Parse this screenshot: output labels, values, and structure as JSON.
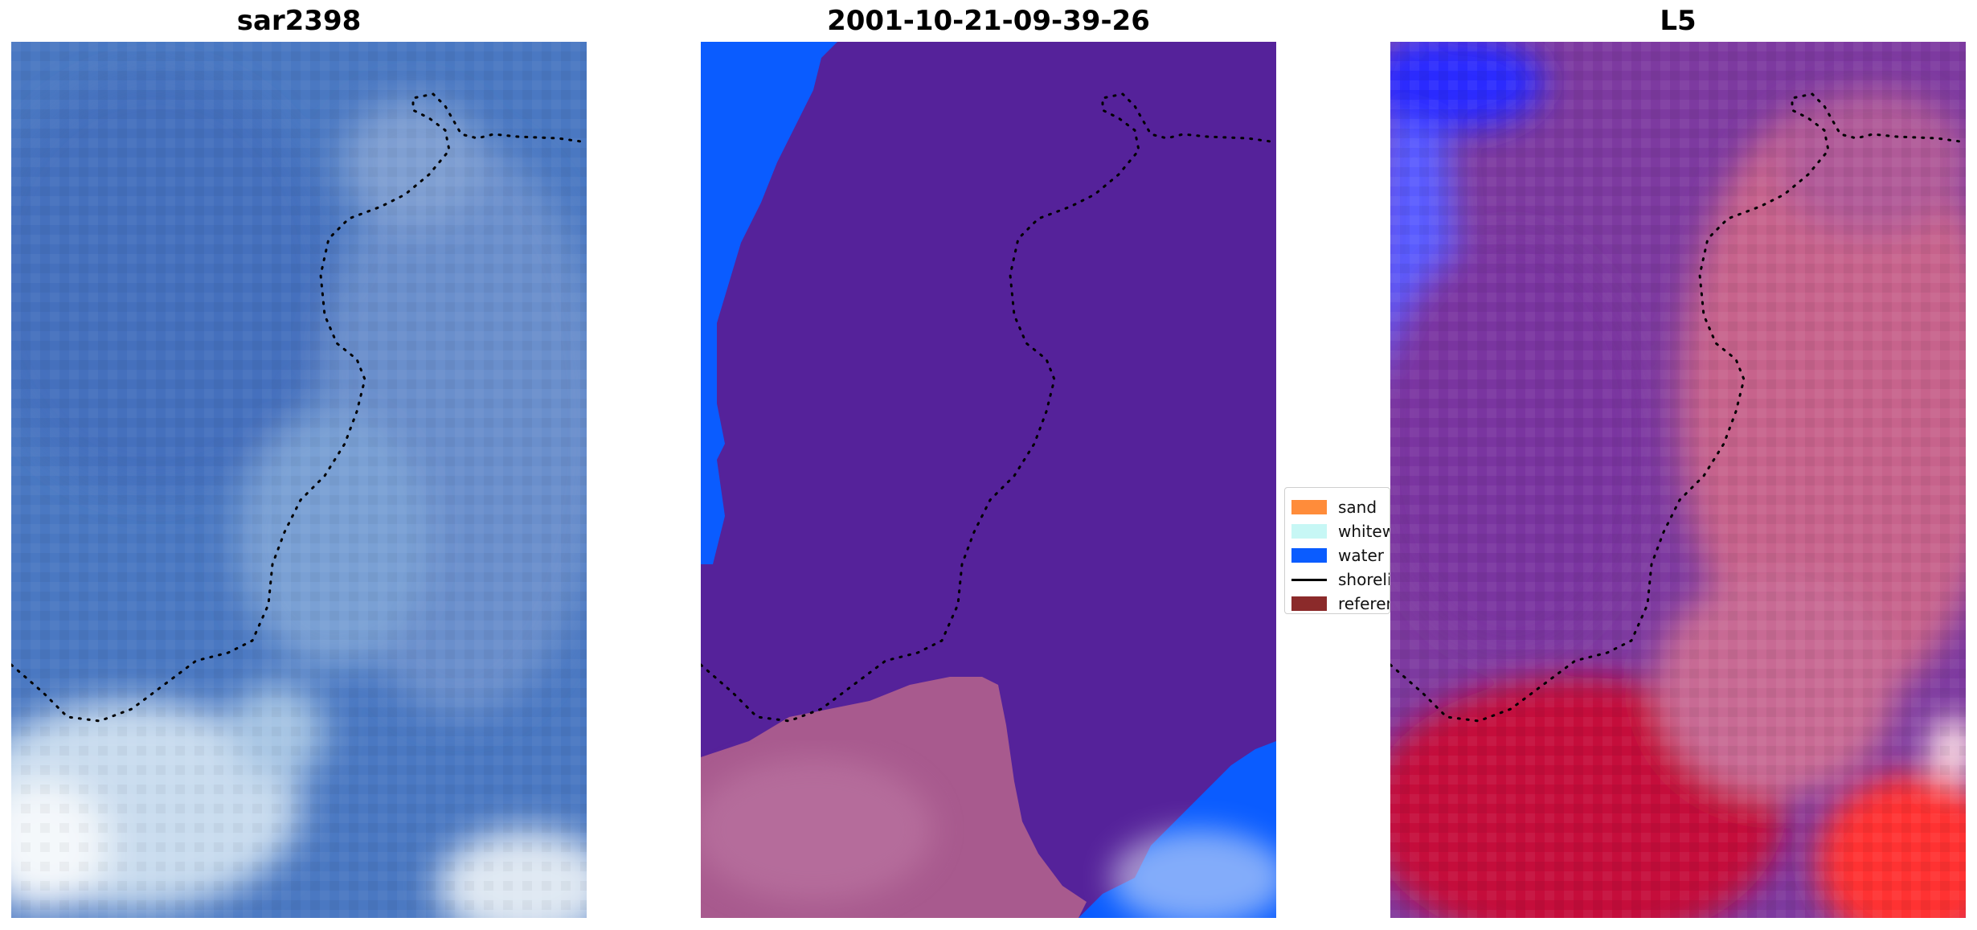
{
  "panels": [
    {
      "title": "sar2398"
    },
    {
      "title": "2001-10-21-09-39-26"
    },
    {
      "title": "L5"
    }
  ],
  "legend": {
    "items": [
      {
        "label": "sand",
        "color": "#ff8c3a",
        "kind": "patch"
      },
      {
        "label": "whitewater",
        "color": "#c7f7f5",
        "kind": "patch"
      },
      {
        "label": "water",
        "color": "#0a5cff",
        "kind": "patch"
      },
      {
        "label": "shoreline",
        "color": "#000000",
        "kind": "line"
      },
      {
        "label": "reference",
        "color": "#8b2a2a",
        "kind": "patch"
      }
    ]
  },
  "colors": {
    "sar_water": "#4a78c2",
    "sar_foam": "#d7e6f2",
    "class_purple": "#55229a",
    "class_water": "#0a5cff",
    "class_sand_overlay": "#a85a8e",
    "l5_purple": "#7d3aa0",
    "l5_pink": "#c7648c",
    "l5_red": "#c50f3a",
    "l5_blue": "#4a5cff"
  }
}
